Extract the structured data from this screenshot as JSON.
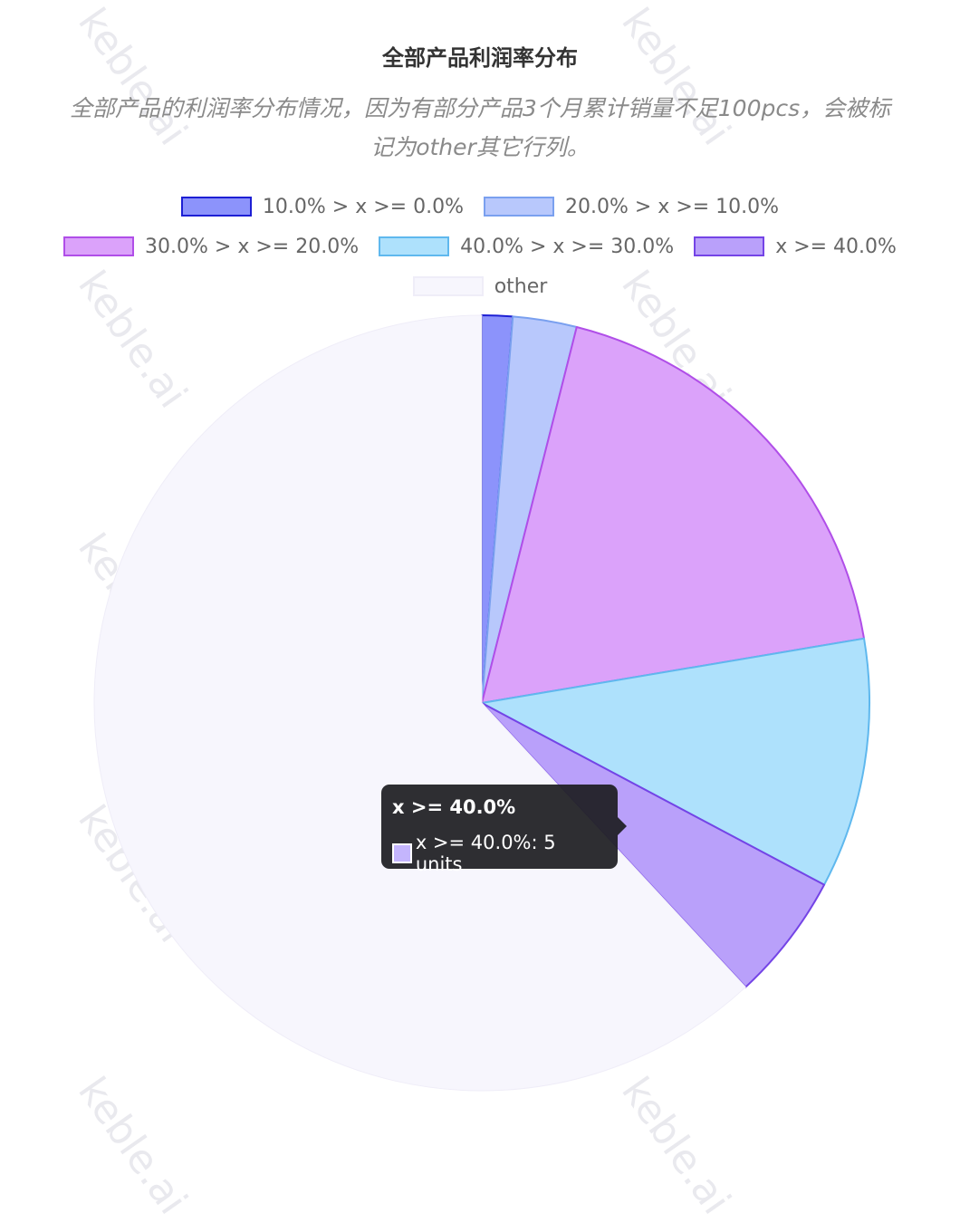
{
  "watermark_text": "keble.ai",
  "chart_data": {
    "type": "pie",
    "title": "全部产品利润率分布",
    "subtitle_lines": [
      "全部产品的利润率分布情况，因为有部分产品3个月累计销量不足100pcs，会被标",
      "记为other其它行列。"
    ],
    "legend_placement": "top",
    "unit": "units",
    "slices": [
      {
        "label": "10.0% > x >= 0.0%",
        "value": 1.2,
        "fill": "#8c93fb",
        "stroke": "#1d1fd4"
      },
      {
        "label": "20.0% > x >= 10.0%",
        "value": 2.5,
        "fill": "#b8c8fc",
        "stroke": "#7aa0ef"
      },
      {
        "label": "30.0% > x >= 20.0%",
        "value": 17.3,
        "fill": "#dba2fa",
        "stroke": "#b04ee8"
      },
      {
        "label": "40.0% > x >= 30.0%",
        "value": 9.8,
        "fill": "#aee1fc",
        "stroke": "#5fb8ee"
      },
      {
        "label": "x >= 40.0%",
        "value": 5,
        "fill": "#b9a0fa",
        "stroke": "#7444e6"
      },
      {
        "label": "other",
        "value": 58.2,
        "fill": "#f7f6fd",
        "stroke": "#efedf8"
      }
    ],
    "tooltip": {
      "title": "x >= 40.0%",
      "line": "x >= 40.0%: 5 units"
    }
  }
}
